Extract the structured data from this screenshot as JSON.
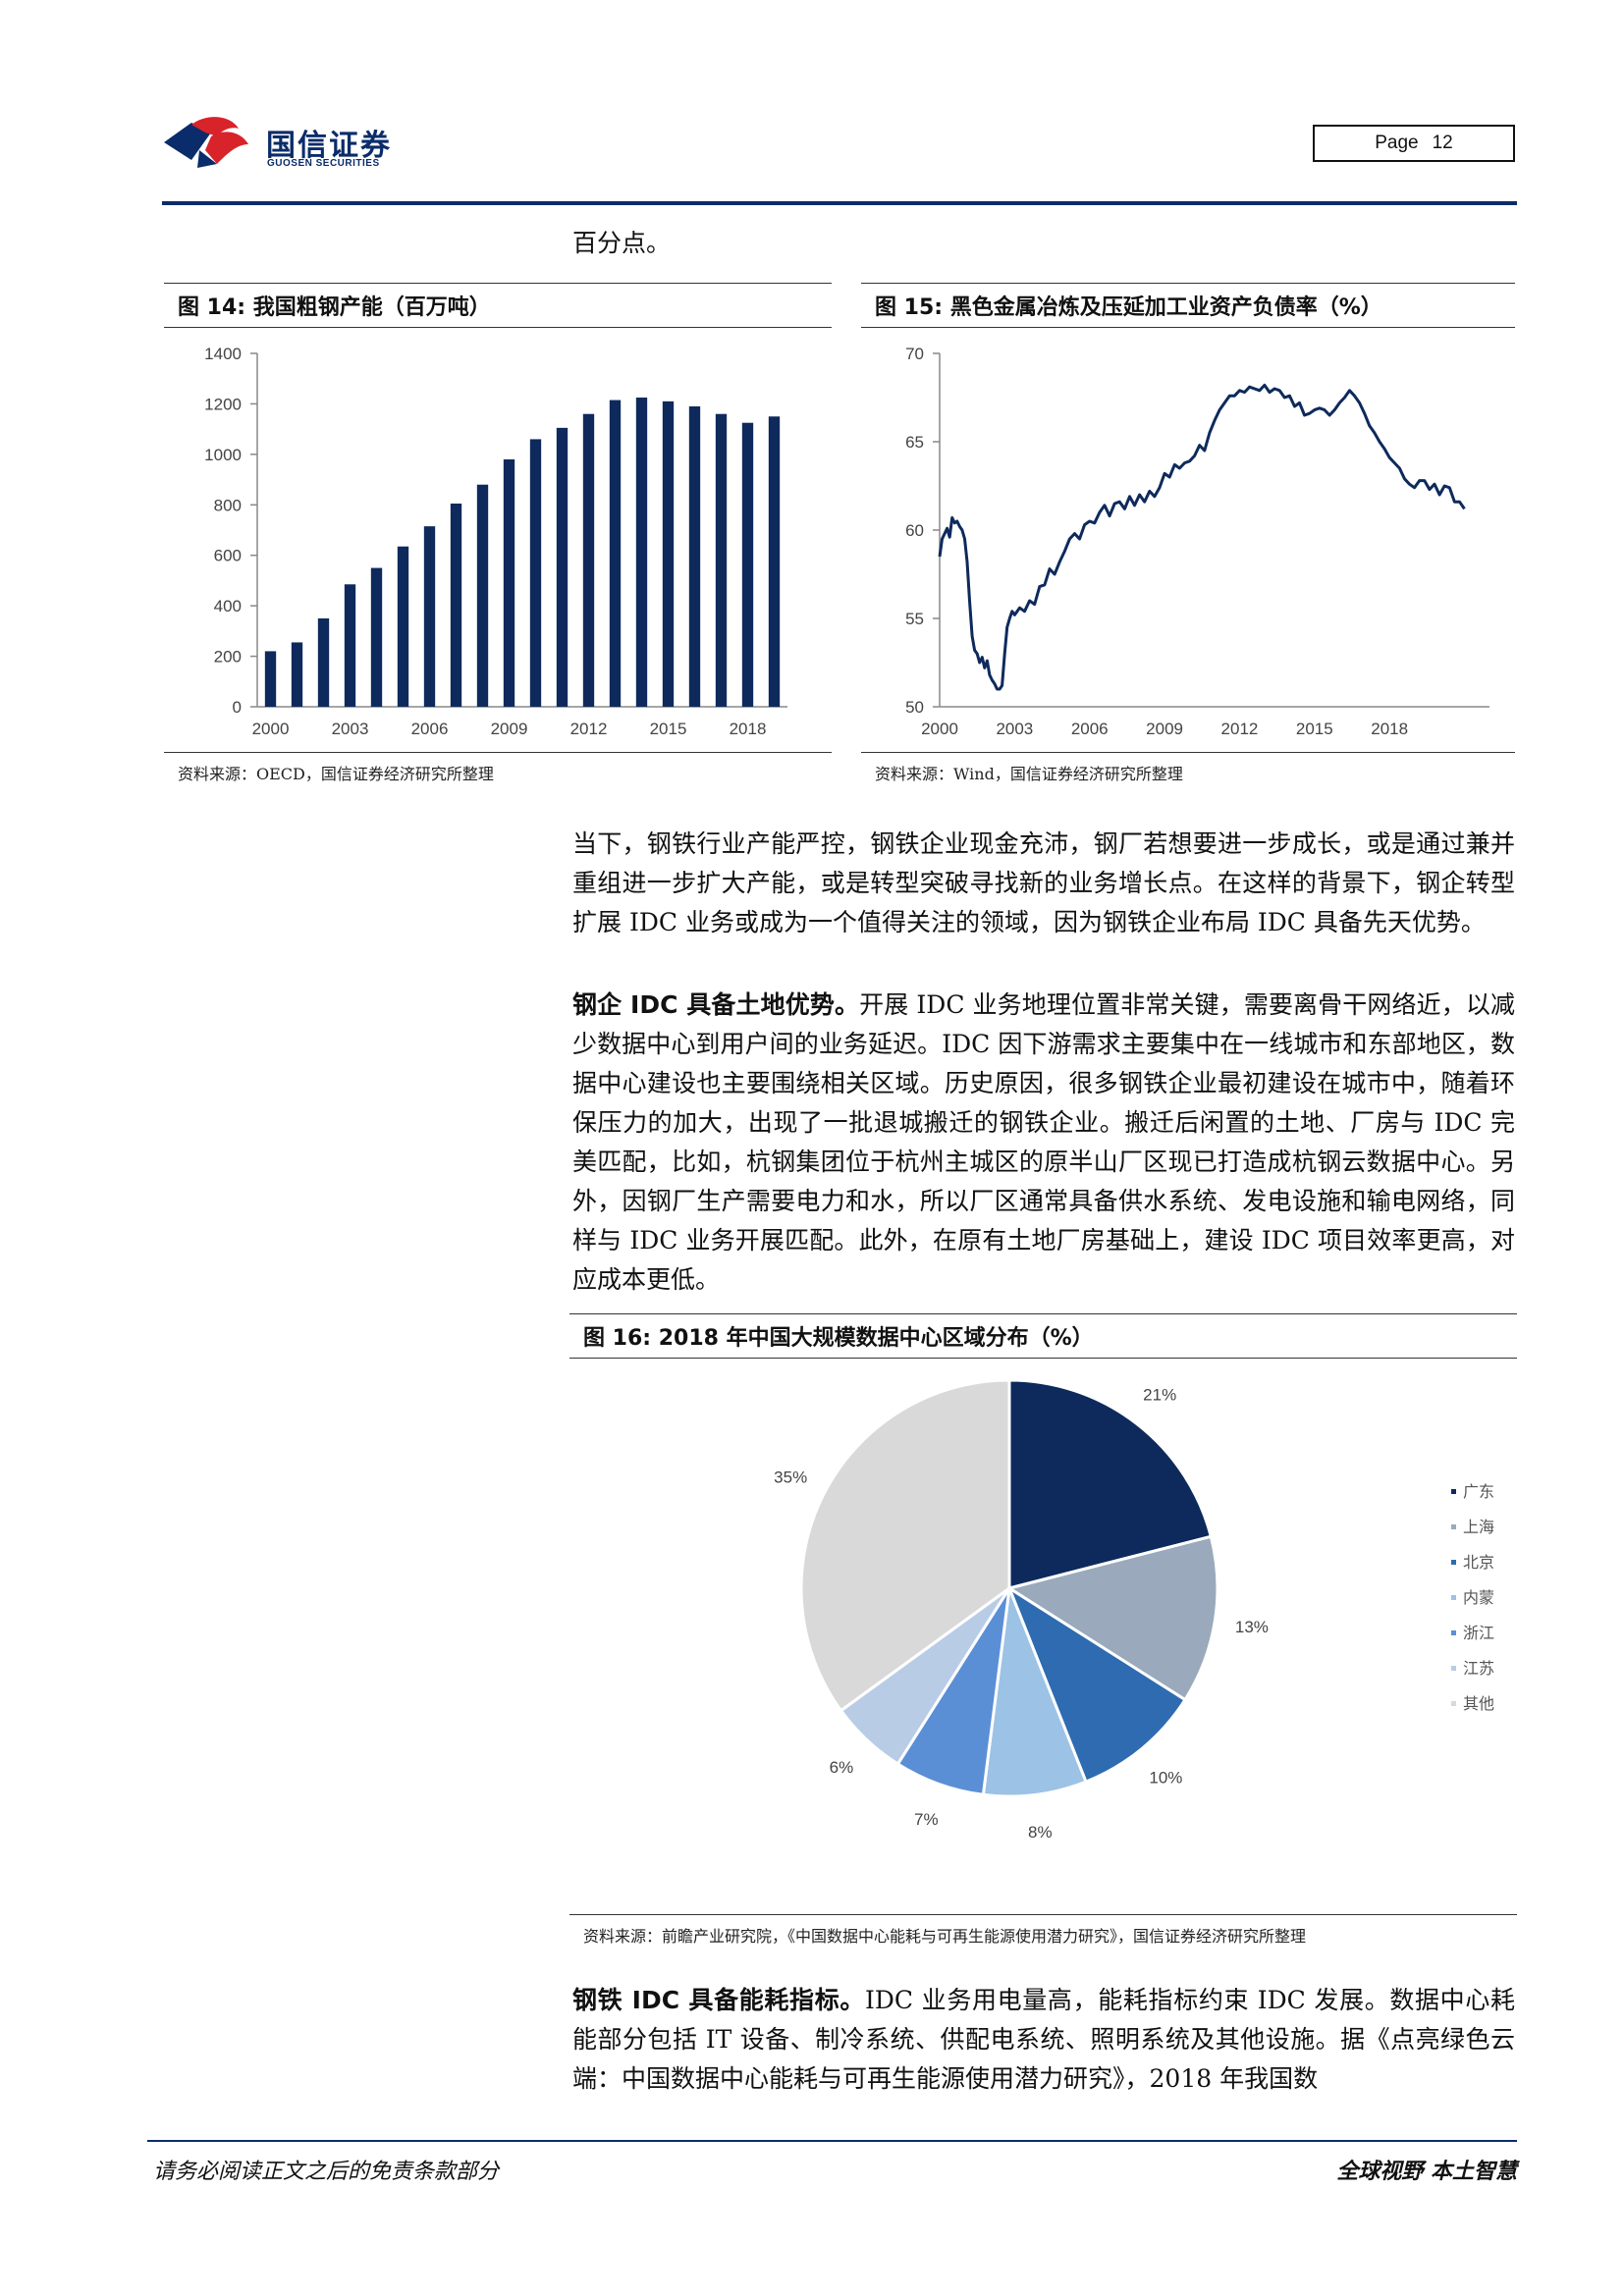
{
  "header": {
    "logo_cn": "国信证券",
    "logo_en": "GUOSEN SECURITIES",
    "page_label": "Page",
    "page_number": "12"
  },
  "intro_text": "百分点。",
  "fig14": {
    "title": "图 14:  我国粗钢产能（百万吨）",
    "source": "资料来源：OECD，国信证券经济研究所整理"
  },
  "fig15": {
    "title": "图 15:  黑色金属冶炼及压延加工业资产负债率（%）",
    "source": "资料来源：Wind，国信证券经济研究所整理"
  },
  "fig16": {
    "title": "图 16:  2018 年中国大规模数据中心区域分布（%）",
    "source": "资料来源：前瞻产业研究院，《中国数据中心能耗与可再生能源使用潜力研究》，国信证券经济研究所整理"
  },
  "para1": "当下，钢铁行业产能严控，钢铁企业现金充沛，钢厂若想要进一步成长，或是通过兼并重组进一步扩大产能，或是转型突破寻找新的业务增长点。在这样的背景下，钢企转型扩展 IDC 业务或成为一个值得关注的领域，因为钢铁企业布局 IDC 具备先天优势。",
  "para2": {
    "lead": "钢企 IDC 具备土地优势。",
    "text": "开展 IDC 业务地理位置非常关键，需要离骨干网络近，以减少数据中心到用户间的业务延迟。IDC 因下游需求主要集中在一线城市和东部地区，数据中心建设也主要围绕相关区域。历史原因，很多钢铁企业最初建设在城市中，随着环保压力的加大，出现了一批退城搬迁的钢铁企业。搬迁后闲置的土地、厂房与 IDC 完美匹配，比如，杭钢集团位于杭州主城区的原半山厂区现已打造成杭钢云数据中心。另外，因钢厂生产需要电力和水，所以厂区通常具备供水系统、发电设施和输电网络，同样与 IDC 业务开展匹配。此外，在原有土地厂房基础上，建设 IDC 项目效率更高，对应成本更低。"
  },
  "para3": {
    "lead": "钢铁 IDC 具备能耗指标。",
    "text": "IDC 业务用电量高，能耗指标约束 IDC 发展。数据中心耗能部分包括 IT 设备、制冷系统、供配电系统、照明系统及其他设施。据《点亮绿色云端：中国数据中心能耗与可再生能源使用潜力研究》，2018 年我国数"
  },
  "footer": {
    "disclaimer": "请务必阅读正文之后的免责条款部分",
    "slogan": "全球视野    本土智慧"
  },
  "chart_data": [
    {
      "type": "bar",
      "title": "我国粗钢产能（百万吨）",
      "x": [
        2000,
        2001,
        2002,
        2003,
        2004,
        2005,
        2006,
        2007,
        2008,
        2009,
        2010,
        2011,
        2012,
        2013,
        2014,
        2015,
        2016,
        2017,
        2018,
        2019
      ],
      "values": [
        220,
        255,
        350,
        485,
        550,
        635,
        715,
        805,
        880,
        980,
        1060,
        1105,
        1160,
        1215,
        1225,
        1210,
        1190,
        1160,
        1125,
        1150
      ],
      "x_ticks": [
        2000,
        2003,
        2006,
        2009,
        2012,
        2015,
        2018
      ],
      "y_ticks": [
        0,
        200,
        400,
        600,
        800,
        1000,
        1200,
        1400
      ],
      "ylim": [
        0,
        1400
      ],
      "color": "#0e2a5c",
      "grid": false
    },
    {
      "type": "line",
      "title": "黑色金属冶炼及压延加工业资产负债率（%）",
      "x": [
        2000.0,
        2000.1,
        2000.2,
        2000.3,
        2000.4,
        2000.5,
        2000.6,
        2000.7,
        2000.8,
        2000.9,
        2001.0,
        2001.1,
        2001.2,
        2001.3,
        2001.4,
        2001.5,
        2001.6,
        2001.7,
        2001.8,
        2001.9,
        2002.0,
        2002.1,
        2002.2,
        2002.3,
        2002.4,
        2002.5,
        2002.6,
        2002.7,
        2002.8,
        2002.9,
        2003.0,
        2003.2,
        2003.4,
        2003.6,
        2003.8,
        2004.0,
        2004.2,
        2004.4,
        2004.6,
        2004.8,
        2005.0,
        2005.2,
        2005.4,
        2005.6,
        2005.8,
        2006.0,
        2006.2,
        2006.4,
        2006.6,
        2006.8,
        2007.0,
        2007.2,
        2007.4,
        2007.6,
        2007.8,
        2008.0,
        2008.2,
        2008.4,
        2008.6,
        2008.8,
        2009.0,
        2009.2,
        2009.4,
        2009.6,
        2009.8,
        2010.0,
        2010.2,
        2010.4,
        2010.6,
        2010.8,
        2011.0,
        2011.2,
        2011.4,
        2011.6,
        2011.8,
        2012.0,
        2012.2,
        2012.4,
        2012.6,
        2012.8,
        2013.0,
        2013.2,
        2013.4,
        2013.6,
        2013.8,
        2014.0,
        2014.2,
        2014.4,
        2014.6,
        2014.8,
        2015.0,
        2015.2,
        2015.4,
        2015.6,
        2015.8,
        2016.0,
        2016.2,
        2016.4,
        2016.6,
        2016.8,
        2017.0,
        2017.2,
        2017.4,
        2017.6,
        2017.8,
        2018.0,
        2018.2,
        2018.4,
        2018.6,
        2018.8,
        2019.0,
        2019.2,
        2019.4,
        2019.6,
        2019.8,
        2020.0,
        2020.2,
        2020.4,
        2020.6,
        2020.8,
        2021.0
      ],
      "values": [
        58.5,
        59.5,
        59.8,
        60.1,
        59.6,
        60.7,
        60.4,
        60.5,
        60.2,
        60.0,
        59.5,
        58.2,
        56.0,
        54.0,
        53.2,
        53.0,
        52.5,
        52.8,
        52.2,
        52.6,
        51.8,
        51.5,
        51.3,
        51.0,
        51.0,
        51.2,
        53.0,
        54.5,
        55.0,
        55.4,
        55.2,
        55.6,
        55.4,
        56.0,
        55.8,
        56.8,
        56.9,
        57.8,
        57.5,
        58.2,
        58.8,
        59.5,
        59.8,
        59.5,
        60.3,
        60.5,
        60.4,
        61.0,
        61.4,
        60.8,
        61.5,
        61.6,
        61.2,
        61.9,
        61.4,
        62.0,
        61.6,
        62.2,
        61.9,
        62.4,
        63.2,
        63.0,
        63.7,
        63.5,
        63.8,
        63.9,
        64.2,
        64.8,
        64.5,
        65.5,
        66.2,
        66.8,
        67.2,
        67.6,
        67.6,
        67.9,
        67.8,
        68.1,
        68.0,
        67.9,
        68.2,
        67.8,
        68.0,
        67.9,
        67.5,
        67.6,
        67.0,
        67.2,
        66.5,
        66.6,
        66.8,
        66.9,
        66.8,
        66.5,
        66.8,
        67.2,
        67.5,
        67.9,
        67.6,
        67.2,
        66.6,
        65.9,
        65.5,
        65.0,
        64.6,
        64.1,
        63.8,
        63.5,
        62.9,
        62.6,
        62.4,
        62.8,
        62.8,
        62.3,
        62.6,
        62.0,
        62.5,
        62.4,
        61.6,
        61.6,
        61.2
      ],
      "x_ticks": [
        2000,
        2003,
        2006,
        2009,
        2012,
        2015,
        2018
      ],
      "y_ticks": [
        50,
        55,
        60,
        65,
        70
      ],
      "xlim": [
        2000,
        2022
      ],
      "ylim": [
        50,
        70
      ],
      "color": "#0e2a5c",
      "grid": false
    },
    {
      "type": "pie",
      "title": "2018年中国大规模数据中心区域分布（%）",
      "labels": [
        "广东",
        "上海",
        "北京",
        "内蒙",
        "浙江",
        "江苏",
        "其他"
      ],
      "values": [
        21,
        13,
        10,
        8,
        7,
        6,
        35
      ],
      "value_labels": [
        "21%",
        "13%",
        "10%",
        "8%",
        "7%",
        "6%",
        "35%"
      ],
      "colors": [
        "#0e2a5c",
        "#9aaabc",
        "#2e6bb0",
        "#9cc2e6",
        "#5a8fd6",
        "#b9cce6",
        "#d9d9d9"
      ],
      "legend": "right"
    }
  ]
}
